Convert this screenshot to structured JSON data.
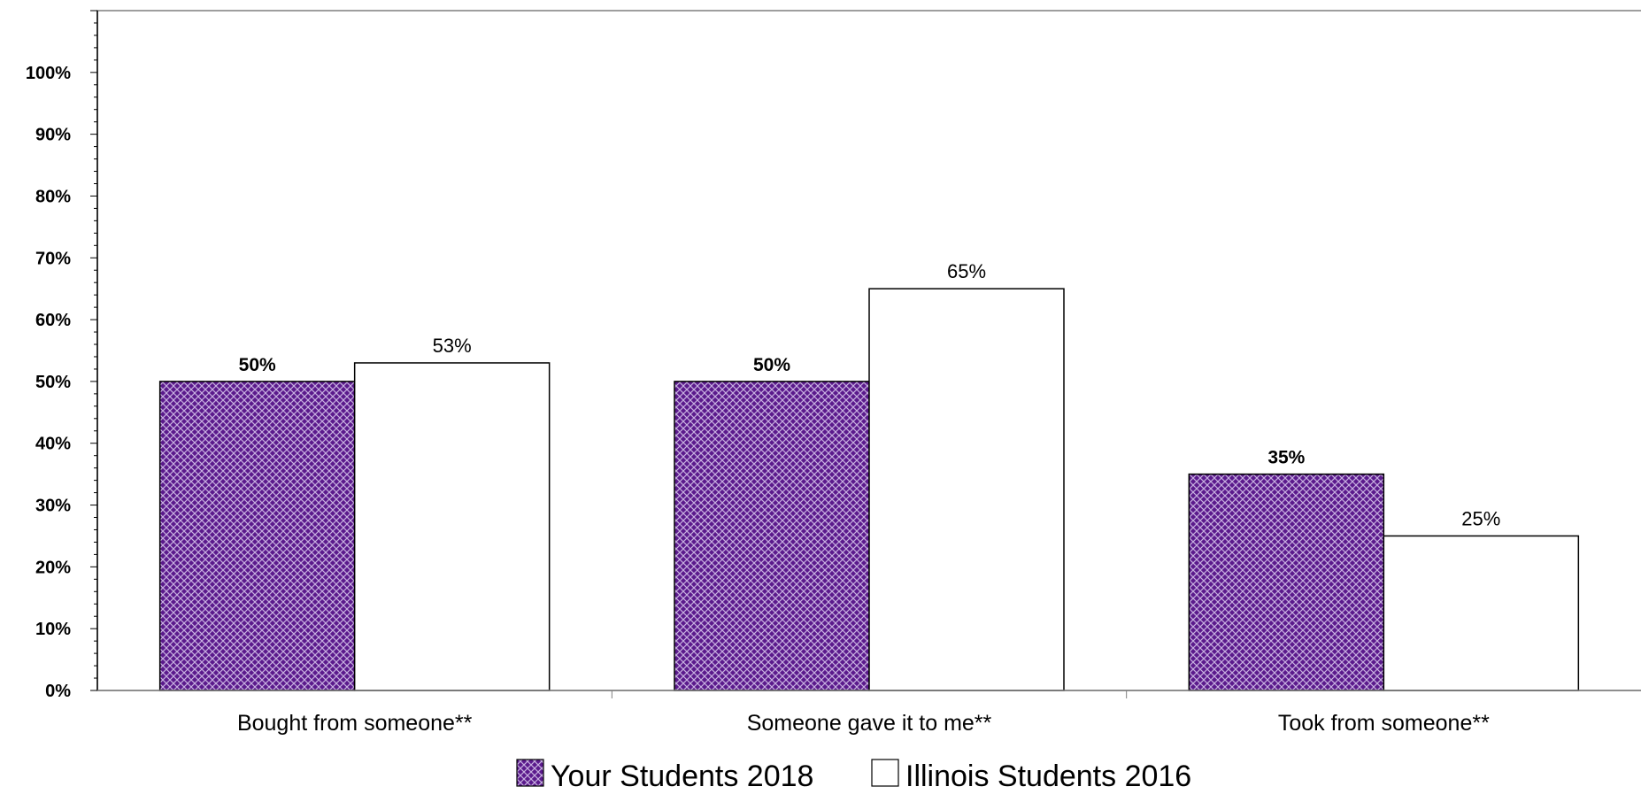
{
  "chart_data": {
    "type": "bar",
    "categories": [
      "Bought from someone**",
      "Someone gave it to me**",
      "Took from someone**"
    ],
    "series": [
      {
        "name": "Your Students 2018",
        "values": [
          50,
          50,
          35
        ],
        "labels": [
          "50%",
          "50%",
          "35%"
        ],
        "color": "#5b1a8c",
        "pattern": "crosshatch",
        "label_bold": true
      },
      {
        "name": "Illinois Students 2016",
        "values": [
          53,
          65,
          25
        ],
        "labels": [
          "53%",
          "65%",
          "25%"
        ],
        "color": "#ffffff",
        "pattern": "none",
        "label_bold": false
      }
    ],
    "yticks": [
      "0%",
      "10%",
      "20%",
      "30%",
      "40%",
      "50%",
      "60%",
      "70%",
      "80%",
      "90%",
      "100%"
    ],
    "ylim": [
      0,
      110
    ],
    "grid": false,
    "legend_position": "bottom-center"
  }
}
